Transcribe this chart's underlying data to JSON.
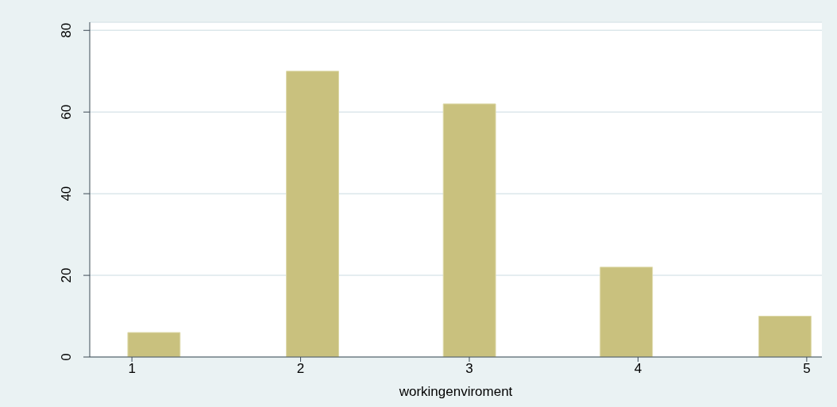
{
  "chart_data": {
    "type": "bar",
    "xlabel": "workingenviroment",
    "x": [
      1.13,
      2.07,
      3.0,
      3.93,
      4.87
    ],
    "values": [
      6,
      70,
      62,
      22,
      10
    ],
    "color": "#c9c17e",
    "xlim": [
      0.75,
      5.09
    ],
    "xticks": [
      1,
      2,
      3,
      4,
      5
    ],
    "ylim": [
      0,
      82
    ],
    "yticks": [
      0,
      20,
      40,
      60,
      80
    ],
    "grid": "y"
  }
}
